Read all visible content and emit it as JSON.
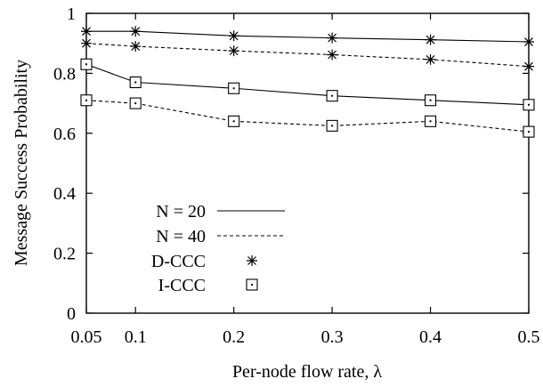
{
  "chart_data": {
    "type": "line",
    "title": "",
    "xlabel": "Per-node flow rate, λ",
    "ylabel": "Message Success Probability",
    "xlim": [
      0.05,
      0.5
    ],
    "ylim": [
      0,
      1
    ],
    "xticks": [
      0.05,
      0.1,
      0.2,
      0.3,
      0.4,
      0.5
    ],
    "xtick_labels": [
      "0.05",
      "0.1",
      "0.2",
      "0.3",
      "0.4",
      "0.5"
    ],
    "yticks": [
      0,
      0.2,
      0.4,
      0.6,
      0.8,
      1
    ],
    "ytick_labels": [
      "0",
      "0.2",
      "0.4",
      "0.6",
      "0.8",
      "1"
    ],
    "grid": false,
    "legend_position": "bottom-left",
    "legend": [
      {
        "label": "N = 20",
        "kind": "line",
        "style": "solid"
      },
      {
        "label": "N = 40",
        "kind": "line",
        "style": "dashed"
      },
      {
        "label": "D-CCC",
        "kind": "marker",
        "marker": "asterisk"
      },
      {
        "label": "I-CCC",
        "kind": "marker",
        "marker": "square"
      }
    ],
    "x": [
      0.05,
      0.1,
      0.2,
      0.3,
      0.4,
      0.5
    ],
    "series": [
      {
        "scheme": "D-CCC",
        "n": "N = 20",
        "style": "solid",
        "marker": "asterisk",
        "values": [
          0.94,
          0.94,
          0.925,
          0.918,
          0.912,
          0.905
        ]
      },
      {
        "scheme": "D-CCC",
        "n": "N = 40",
        "style": "dashed",
        "marker": "asterisk",
        "values": [
          0.9,
          0.89,
          0.875,
          0.862,
          0.846,
          0.823
        ]
      },
      {
        "scheme": "I-CCC",
        "n": "N = 20",
        "style": "solid",
        "marker": "square",
        "values": [
          0.83,
          0.77,
          0.75,
          0.725,
          0.71,
          0.695
        ]
      },
      {
        "scheme": "I-CCC",
        "n": "N = 40",
        "style": "dashed",
        "marker": "square",
        "values": [
          0.71,
          0.7,
          0.64,
          0.625,
          0.64,
          0.605
        ]
      }
    ]
  }
}
